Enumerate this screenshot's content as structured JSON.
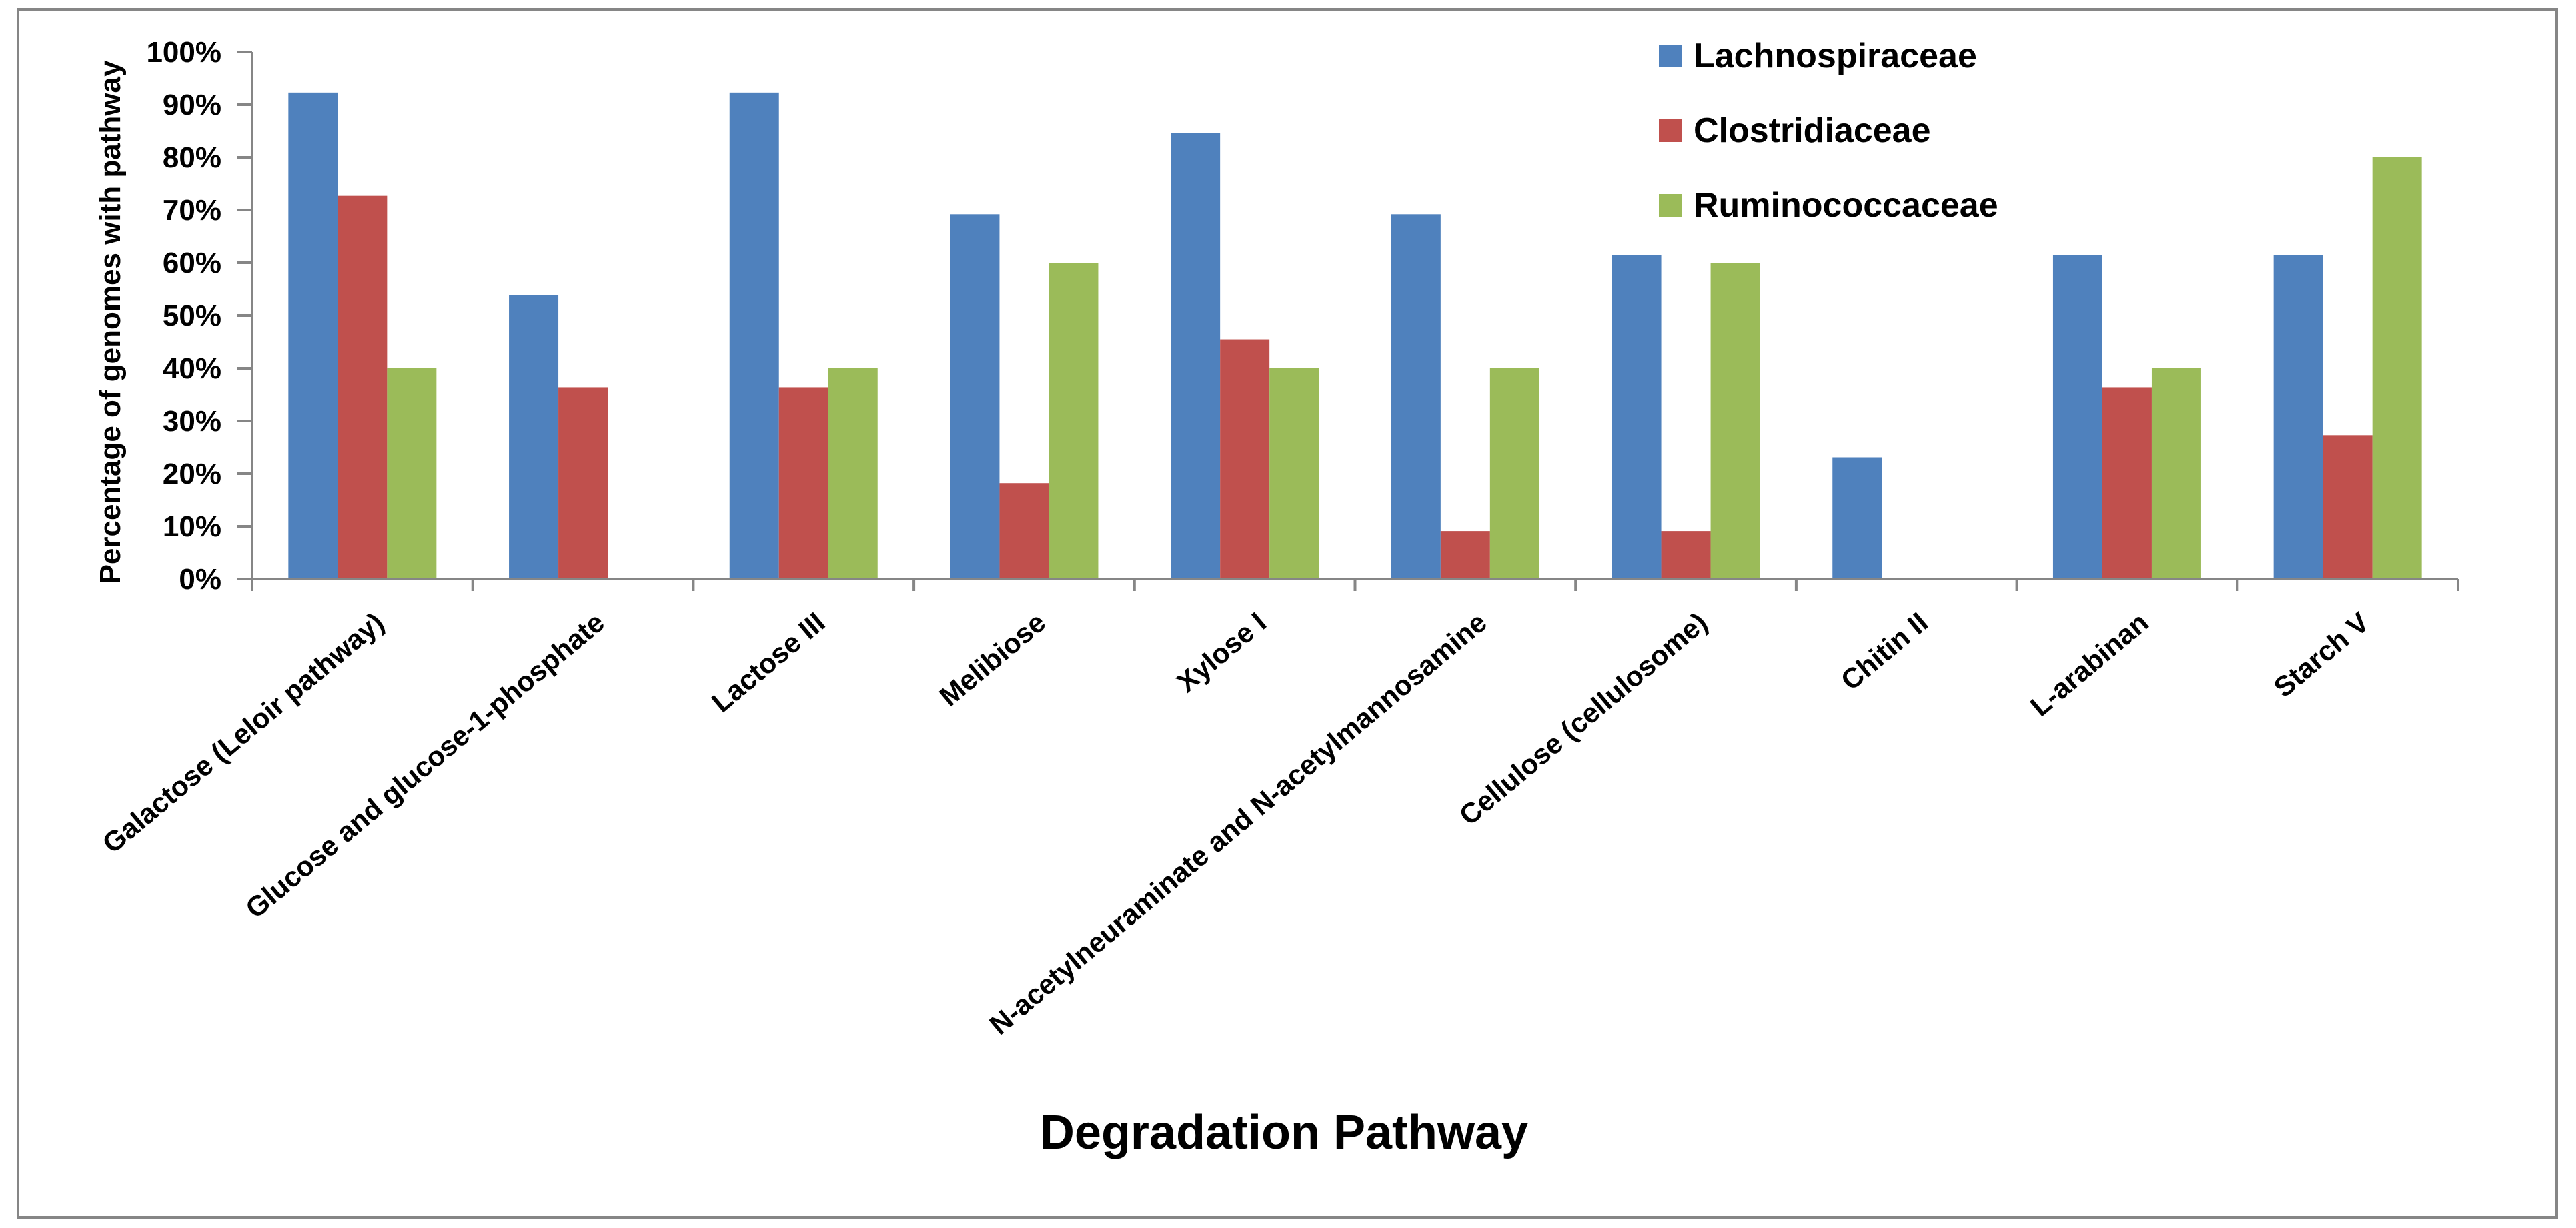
{
  "chart_data": {
    "type": "bar",
    "title": "",
    "xlabel": "Degradation Pathway",
    "ylabel": "Percentage of genomes with pathway",
    "ylim": [
      0,
      100
    ],
    "yticks": [
      0,
      10,
      20,
      30,
      40,
      50,
      60,
      70,
      80,
      90,
      100
    ],
    "ytick_labels": [
      "0%",
      "10%",
      "20%",
      "30%",
      "40%",
      "50%",
      "60%",
      "70%",
      "80%",
      "90%",
      "100%"
    ],
    "grid": false,
    "legend_position": "top-right",
    "categories": [
      "Galactose (Leloir pathway)",
      "Glucose and glucose-1-phosphate",
      "Lactose III",
      "Melibiose",
      "Xylose I",
      "N-acetylneuraminate and N-acetylmannosamine",
      "Cellulose (cellulosome)",
      "Chitin II",
      "L-arabinan",
      "Starch V"
    ],
    "series": [
      {
        "name": "Lachnospiraceae",
        "color": "#4f81bd",
        "values": [
          92.3,
          53.8,
          92.3,
          69.2,
          84.6,
          69.2,
          61.5,
          23.1,
          61.5,
          61.5
        ]
      },
      {
        "name": "Clostridiaceae",
        "color": "#c0504d",
        "values": [
          72.7,
          36.4,
          36.4,
          18.2,
          45.5,
          9.1,
          9.1,
          0,
          36.4,
          27.3
        ]
      },
      {
        "name": "Ruminococcaceae",
        "color": "#9bbb59",
        "values": [
          40,
          0,
          40,
          60,
          40,
          40,
          60,
          0,
          40,
          80
        ]
      }
    ]
  }
}
